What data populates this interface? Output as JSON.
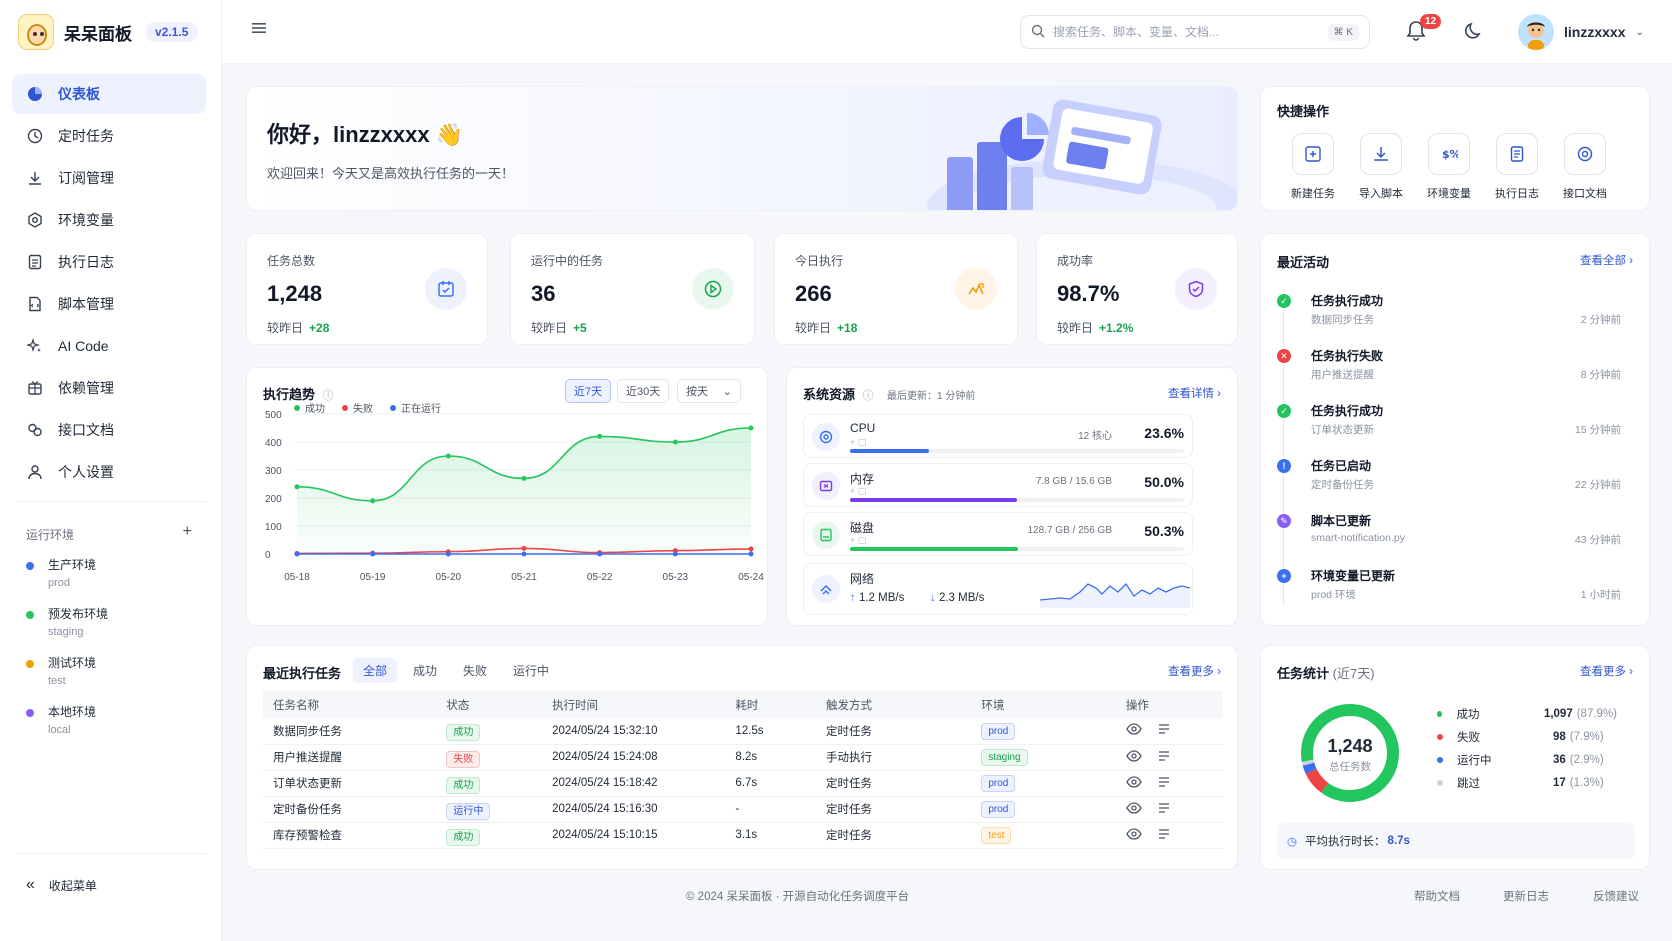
{
  "brand": {
    "name": "呆呆面板",
    "version": "v2.1.5"
  },
  "nav": {
    "items": [
      {
        "label": "仪表板",
        "icon": "dashboard-icon"
      },
      {
        "label": "定时任务",
        "icon": "clock-icon"
      },
      {
        "label": "订阅管理",
        "icon": "download-icon"
      },
      {
        "label": "环境变量",
        "icon": "settings-icon"
      },
      {
        "label": "执行日志",
        "icon": "log-icon"
      },
      {
        "label": "脚本管理",
        "icon": "script-icon"
      },
      {
        "label": "AI Code",
        "icon": "sparkle-icon"
      },
      {
        "label": "依赖管理",
        "icon": "package-icon"
      },
      {
        "label": "接口文档",
        "icon": "link-icon"
      },
      {
        "label": "个人设置",
        "icon": "user-icon"
      }
    ]
  },
  "envs": {
    "title": "运行环境",
    "add": "+",
    "items": [
      {
        "name": "生产环境",
        "sub": "prod",
        "color": "#3b6ff2"
      },
      {
        "name": "预发布环境",
        "sub": "staging",
        "color": "#22c55e"
      },
      {
        "name": "测试环境",
        "sub": "test",
        "color": "#f59e0b"
      },
      {
        "name": "本地环境",
        "sub": "local",
        "color": "#8b5cf6"
      }
    ]
  },
  "collapse_label": "收起菜单",
  "header": {
    "search_placeholder": "搜索任务、脚本、变量、文档...",
    "shortcut": "⌘ K",
    "notif_count": "12",
    "username": "linzzxxxx"
  },
  "greeting": {
    "title": "你好，linzzxxxx 👋",
    "subtitle": "欢迎回来！今天又是高效执行任务的一天！"
  },
  "stats": [
    {
      "label": "任务总数",
      "value": "1,248",
      "cmp": "较昨日",
      "delta": "+28",
      "color": "#3b6ff2",
      "bg": "#eef2ff"
    },
    {
      "label": "运行中的任务",
      "value": "36",
      "cmp": "较昨日",
      "delta": "+5",
      "color": "#16a34a",
      "bg": "#e9f8ee"
    },
    {
      "label": "今日执行",
      "value": "266",
      "cmp": "较昨日",
      "delta": "+18",
      "color": "#f59e0b",
      "bg": "#fff4e5"
    },
    {
      "label": "成功率",
      "value": "98.7%",
      "cmp": "较昨日",
      "delta": "+1.2%",
      "color": "#7c3aed",
      "bg": "#f3effe"
    }
  ],
  "quick": {
    "title": "快捷操作",
    "items": [
      {
        "label": "新建任务",
        "icon": "add-task-icon"
      },
      {
        "label": "导入脚本",
        "icon": "import-icon"
      },
      {
        "label": "环境变量",
        "icon": "variable-icon"
      },
      {
        "label": "执行日志",
        "icon": "doc-icon"
      },
      {
        "label": "接口文档",
        "icon": "api-icon"
      }
    ]
  },
  "activity": {
    "title": "最近活动",
    "link": "查看全部 ›",
    "items": [
      {
        "title": "任务执行成功",
        "sub": "数据同步任务",
        "time": "2 分钟前",
        "color": "#22c55e",
        "glyph": "✓"
      },
      {
        "title": "任务执行失败",
        "sub": "用户推送提醒",
        "time": "8 分钟前",
        "color": "#ef4444",
        "glyph": "✕"
      },
      {
        "title": "任务执行成功",
        "sub": "订单状态更新",
        "time": "15 分钟前",
        "color": "#22c55e",
        "glyph": "✓"
      },
      {
        "title": "任务已启动",
        "sub": "定时备份任务",
        "time": "22 分钟前",
        "color": "#3b6ff2",
        "glyph": "!"
      },
      {
        "title": "脚本已更新",
        "sub": "smart-notification.py",
        "time": "43 分钟前",
        "color": "#8b5cf6",
        "glyph": "✎"
      },
      {
        "title": "环境变量已更新",
        "sub": "prod 环境",
        "time": "1 小时前",
        "color": "#3b6ff2",
        "glyph": "+"
      }
    ]
  },
  "trend": {
    "title": "执行趋势",
    "ranges": [
      "近7天",
      "近30天"
    ],
    "group": "按天"
  },
  "chart_data": {
    "type": "line",
    "categories": [
      "05-18",
      "05-19",
      "05-20",
      "05-21",
      "05-22",
      "05-23",
      "05-24"
    ],
    "yticks": [
      0,
      100,
      200,
      300,
      400,
      500
    ],
    "ylim": [
      0,
      500
    ],
    "series": [
      {
        "name": "成功",
        "color": "#22c55e",
        "values": [
          240,
          190,
          350,
          270,
          420,
          400,
          450
        ]
      },
      {
        "name": "失败",
        "color": "#ef4444",
        "values": [
          2,
          3,
          8,
          20,
          5,
          12,
          18
        ]
      },
      {
        "name": "正在运行",
        "color": "#3b6ff2",
        "values": [
          0,
          0,
          0,
          0,
          0,
          0,
          0
        ]
      }
    ],
    "legend": "top-left"
  },
  "resources": {
    "title": "系统资源",
    "updated": "最后更新：1 分钟前",
    "link": "查看详情 ›",
    "items": [
      {
        "name": "CPU",
        "detail": "12 核心",
        "percent": "23.6%",
        "value": 23.6,
        "color": "#3b6ff2",
        "bg": "#eef2ff",
        "icon": "cpu-icon"
      },
      {
        "name": "内存",
        "detail": "7.8 GB / 15.6 GB",
        "percent": "50.0%",
        "value": 50.0,
        "color": "#7c3aed",
        "bg": "#f3effe",
        "icon": "memory-icon"
      },
      {
        "name": "磁盘",
        "detail": "128.7 GB / 256 GB",
        "percent": "50.3%",
        "value": 50.3,
        "color": "#22c55e",
        "bg": "#e9f8ee",
        "icon": "disk-icon"
      }
    ],
    "network": {
      "name": "网络",
      "up": "1.2 MB/s",
      "down": "2.3 MB/s"
    }
  },
  "tasks": {
    "title": "最近执行任务",
    "tabs": [
      "全部",
      "成功",
      "失败",
      "运行中"
    ],
    "link": "查看更多 ›",
    "headers": [
      "任务名称",
      "状态",
      "执行时间",
      "耗时",
      "触发方式",
      "环境",
      "操作"
    ],
    "rows": [
      {
        "name": "数据同步任务",
        "status": "成功",
        "time": "2024/05/24 15:32:10",
        "dur": "12.5s",
        "trigger": "定时任务",
        "env": "prod"
      },
      {
        "name": "用户推送提醒",
        "status": "失败",
        "time": "2024/05/24 15:24:08",
        "dur": "8.2s",
        "trigger": "手动执行",
        "env": "staging"
      },
      {
        "name": "订单状态更新",
        "status": "成功",
        "time": "2024/05/24 15:18:42",
        "dur": "6.7s",
        "trigger": "定时任务",
        "env": "prod"
      },
      {
        "name": "定时备份任务",
        "status": "运行中",
        "time": "2024/05/24 15:16:30",
        "dur": "-",
        "trigger": "定时任务",
        "env": "prod"
      },
      {
        "name": "库存预警检查",
        "status": "成功",
        "time": "2024/05/24 15:10:15",
        "dur": "3.1s",
        "trigger": "定时任务",
        "env": "test"
      }
    ]
  },
  "taskstats": {
    "title": "任务统计",
    "range": "(近7天)",
    "link": "查看更多 ›",
    "total": "1,248",
    "total_label": "总任务数",
    "avg_label": "平均执行时长：",
    "avg": "8.7s",
    "items": [
      {
        "name": "成功",
        "count": "1,097",
        "pct": "(87.9%)",
        "value": 87.9,
        "color": "#22c55e"
      },
      {
        "name": "失败",
        "count": "98",
        "pct": "(7.9%)",
        "value": 7.9,
        "color": "#ef4444"
      },
      {
        "name": "运行中",
        "count": "36",
        "pct": "(2.9%)",
        "value": 2.9,
        "color": "#3b6ff2"
      },
      {
        "name": "跳过",
        "count": "17",
        "pct": "(1.3%)",
        "value": 1.3,
        "color": "#cbd2dc"
      }
    ]
  },
  "footer": {
    "copy": "© 2024 呆呆面板 · 开源自动化任务调度平台",
    "links": [
      "帮助文档",
      "更新日志",
      "反馈建议"
    ]
  }
}
